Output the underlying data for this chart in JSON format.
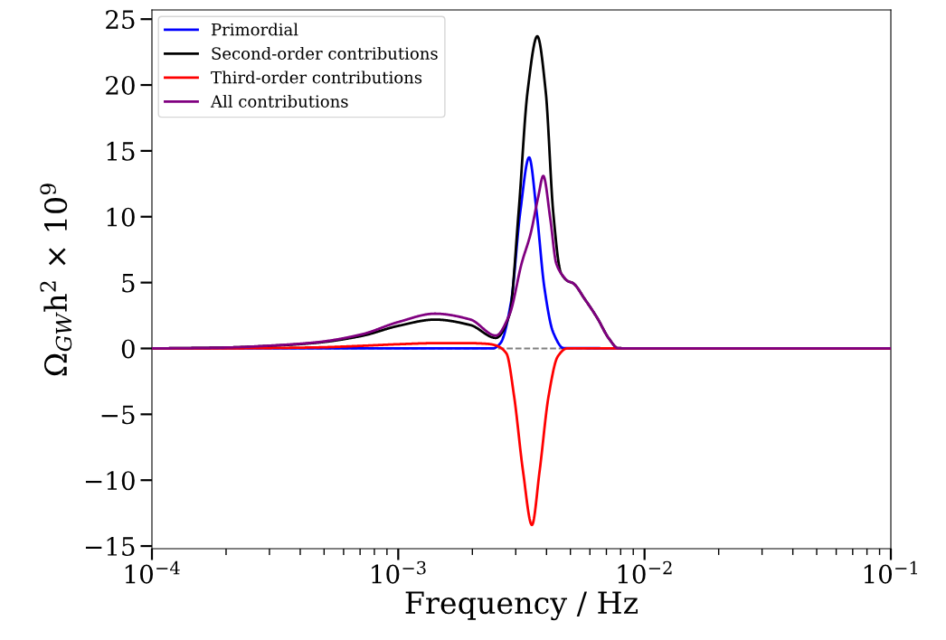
{
  "chart_data": {
    "type": "line",
    "xlabel": "Frequency / Hz",
    "ylabel": "Ω$_{GW}$h$^{2}$ × 10$^{9}$",
    "log": "x",
    "xlim": [
      0.0001,
      0.1
    ],
    "ylim": [
      -15.2,
      25.7
    ],
    "xticks": [
      {
        "value": 0.0001,
        "label": "10$^{−4}$"
      },
      {
        "value": 0.001,
        "label": "10$^{−3}$"
      },
      {
        "value": 0.01,
        "label": "10$^{−2}$"
      },
      {
        "value": 0.1,
        "label": "10$^{−1}$"
      }
    ],
    "yticks": [
      {
        "value": -15,
        "label": "−15"
      },
      {
        "value": -10,
        "label": "−10"
      },
      {
        "value": -5,
        "label": "−5"
      },
      0,
      5,
      10,
      15,
      20,
      25
    ],
    "legend": "top left",
    "grid": false,
    "marker": "none",
    "line_style": "solid",
    "ref_lines": [
      {
        "axis": "y",
        "value": 0,
        "color": "#808080",
        "line_style": "dashed"
      }
    ],
    "series": [
      {
        "name": "Primordial",
        "color": "#0000ff",
        "x": [
          0.0001,
          0.00242,
          0.0026,
          0.00287,
          0.003126,
          0.0034,
          0.00365,
          0.00392,
          0.00426,
          0.0047,
          0.1
        ],
        "values": [
          0,
          0,
          0.4,
          3.5,
          10.3,
          14.5,
          10.3,
          4.63,
          1.2,
          0.02,
          0
        ]
      },
      {
        "name": "Second-order contributions",
        "color": "#000000",
        "x": [
          0.0001,
          0.0002,
          0.000305,
          0.000466,
          0.000711,
          0.000998,
          0.00141,
          0.00196,
          0.00249,
          0.00283,
          0.00308,
          0.00335,
          0.00367,
          0.00397,
          0.00426,
          0.00457,
          0.0049,
          0.00511,
          0.00573,
          0.00641,
          0.00717,
          0.00781,
          0.01,
          0.1
        ],
        "values": [
          0,
          0.07,
          0.2,
          0.43,
          0.95,
          1.71,
          2.19,
          1.78,
          0.8,
          2.58,
          10.3,
          19.5,
          23.7,
          19.5,
          10.3,
          5.77,
          5.1,
          4.97,
          3.72,
          2.35,
          0.75,
          0.02,
          0,
          0
        ]
      },
      {
        "name": "Third-order contributions",
        "color": "#ff0000",
        "x": [
          0.0001,
          0.0002,
          0.000466,
          0.000711,
          0.001,
          0.00141,
          0.00196,
          0.0023,
          0.00249,
          0.002752,
          0.002952,
          0.00321,
          0.00349,
          0.00375,
          0.00408,
          0.00444,
          0.00484,
          0.1
        ],
        "values": [
          0,
          0.01,
          0.08,
          0.2,
          0.32,
          0.4,
          0.4,
          0.35,
          0.23,
          -0.39,
          -3.59,
          -9.3,
          -13.4,
          -9.3,
          -3.59,
          -0.62,
          0,
          0
        ]
      },
      {
        "name": "All contributions",
        "color": "#800080",
        "x": [
          0.0001,
          0.0002,
          0.000305,
          0.000466,
          0.000711,
          0.000998,
          0.00141,
          0.00196,
          0.00249,
          0.00283,
          0.00317,
          0.00345,
          0.0037,
          0.00388,
          0.00414,
          0.00438,
          0.0047,
          0.0049,
          0.00511,
          0.00573,
          0.00641,
          0.00717,
          0.00781,
          0.01,
          0.1
        ],
        "values": [
          0,
          0.07,
          0.22,
          0.47,
          1.07,
          2.0,
          2.64,
          2.2,
          0.98,
          2.58,
          6.46,
          8.74,
          11.5,
          13.1,
          9.9,
          6.46,
          5.43,
          5.1,
          4.97,
          3.72,
          2.35,
          0.75,
          0.02,
          0,
          0
        ]
      }
    ]
  }
}
